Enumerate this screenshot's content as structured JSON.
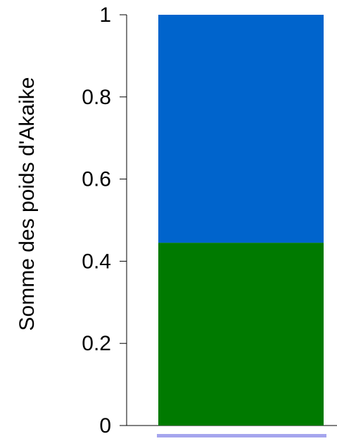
{
  "chart_data": {
    "type": "bar",
    "stacked": true,
    "categories": [
      ""
    ],
    "series": [
      {
        "values": [
          0.445
        ],
        "color": "#007a00"
      },
      {
        "values": [
          0.555
        ],
        "color": "#0064cc"
      }
    ],
    "title": "",
    "xlabel": "",
    "ylabel": "Somme des poids d'Akaike",
    "ylim": [
      0,
      1
    ],
    "yticks": [
      0,
      0.2,
      0.4,
      0.6,
      0.8,
      1
    ],
    "ytick_labels": [
      "0",
      "0.2",
      "0.4",
      "0.6",
      "0.8",
      "1"
    ],
    "grid": false,
    "legend": "none",
    "marker_color": "#a5a5ee"
  }
}
